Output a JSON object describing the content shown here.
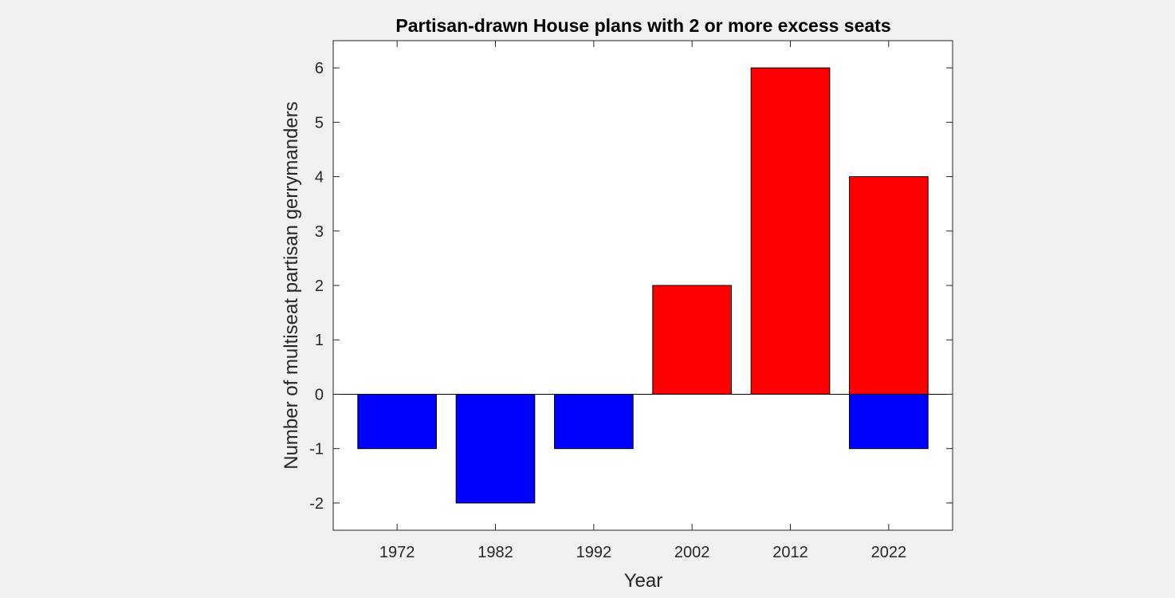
{
  "chart_data": {
    "type": "bar",
    "stacked": true,
    "title": "Partisan-drawn House plans with 2 or more excess seats",
    "xlabel": "Year",
    "ylabel": "Number of multiseat partisan gerrymanders",
    "categories": [
      "1972",
      "1982",
      "1992",
      "2002",
      "2012",
      "2022"
    ],
    "series": [
      {
        "color": "#ff0000",
        "values": [
          0,
          0,
          0,
          2,
          6,
          4
        ]
      },
      {
        "color": "#0000ff",
        "values": [
          -1,
          -2,
          -1,
          0,
          0,
          -1
        ]
      }
    ],
    "ylim": [
      -2.5,
      6.5
    ],
    "yticks": [
      -2,
      -1,
      0,
      1,
      2,
      3,
      4,
      5,
      6
    ],
    "ytick_labels": [
      "-2",
      "-1",
      "0",
      "1",
      "2",
      "3",
      "4",
      "5",
      "6"
    ],
    "grid": false,
    "legend": "none",
    "background": "#f0f0f0",
    "axes_background": "#ffffff"
  }
}
